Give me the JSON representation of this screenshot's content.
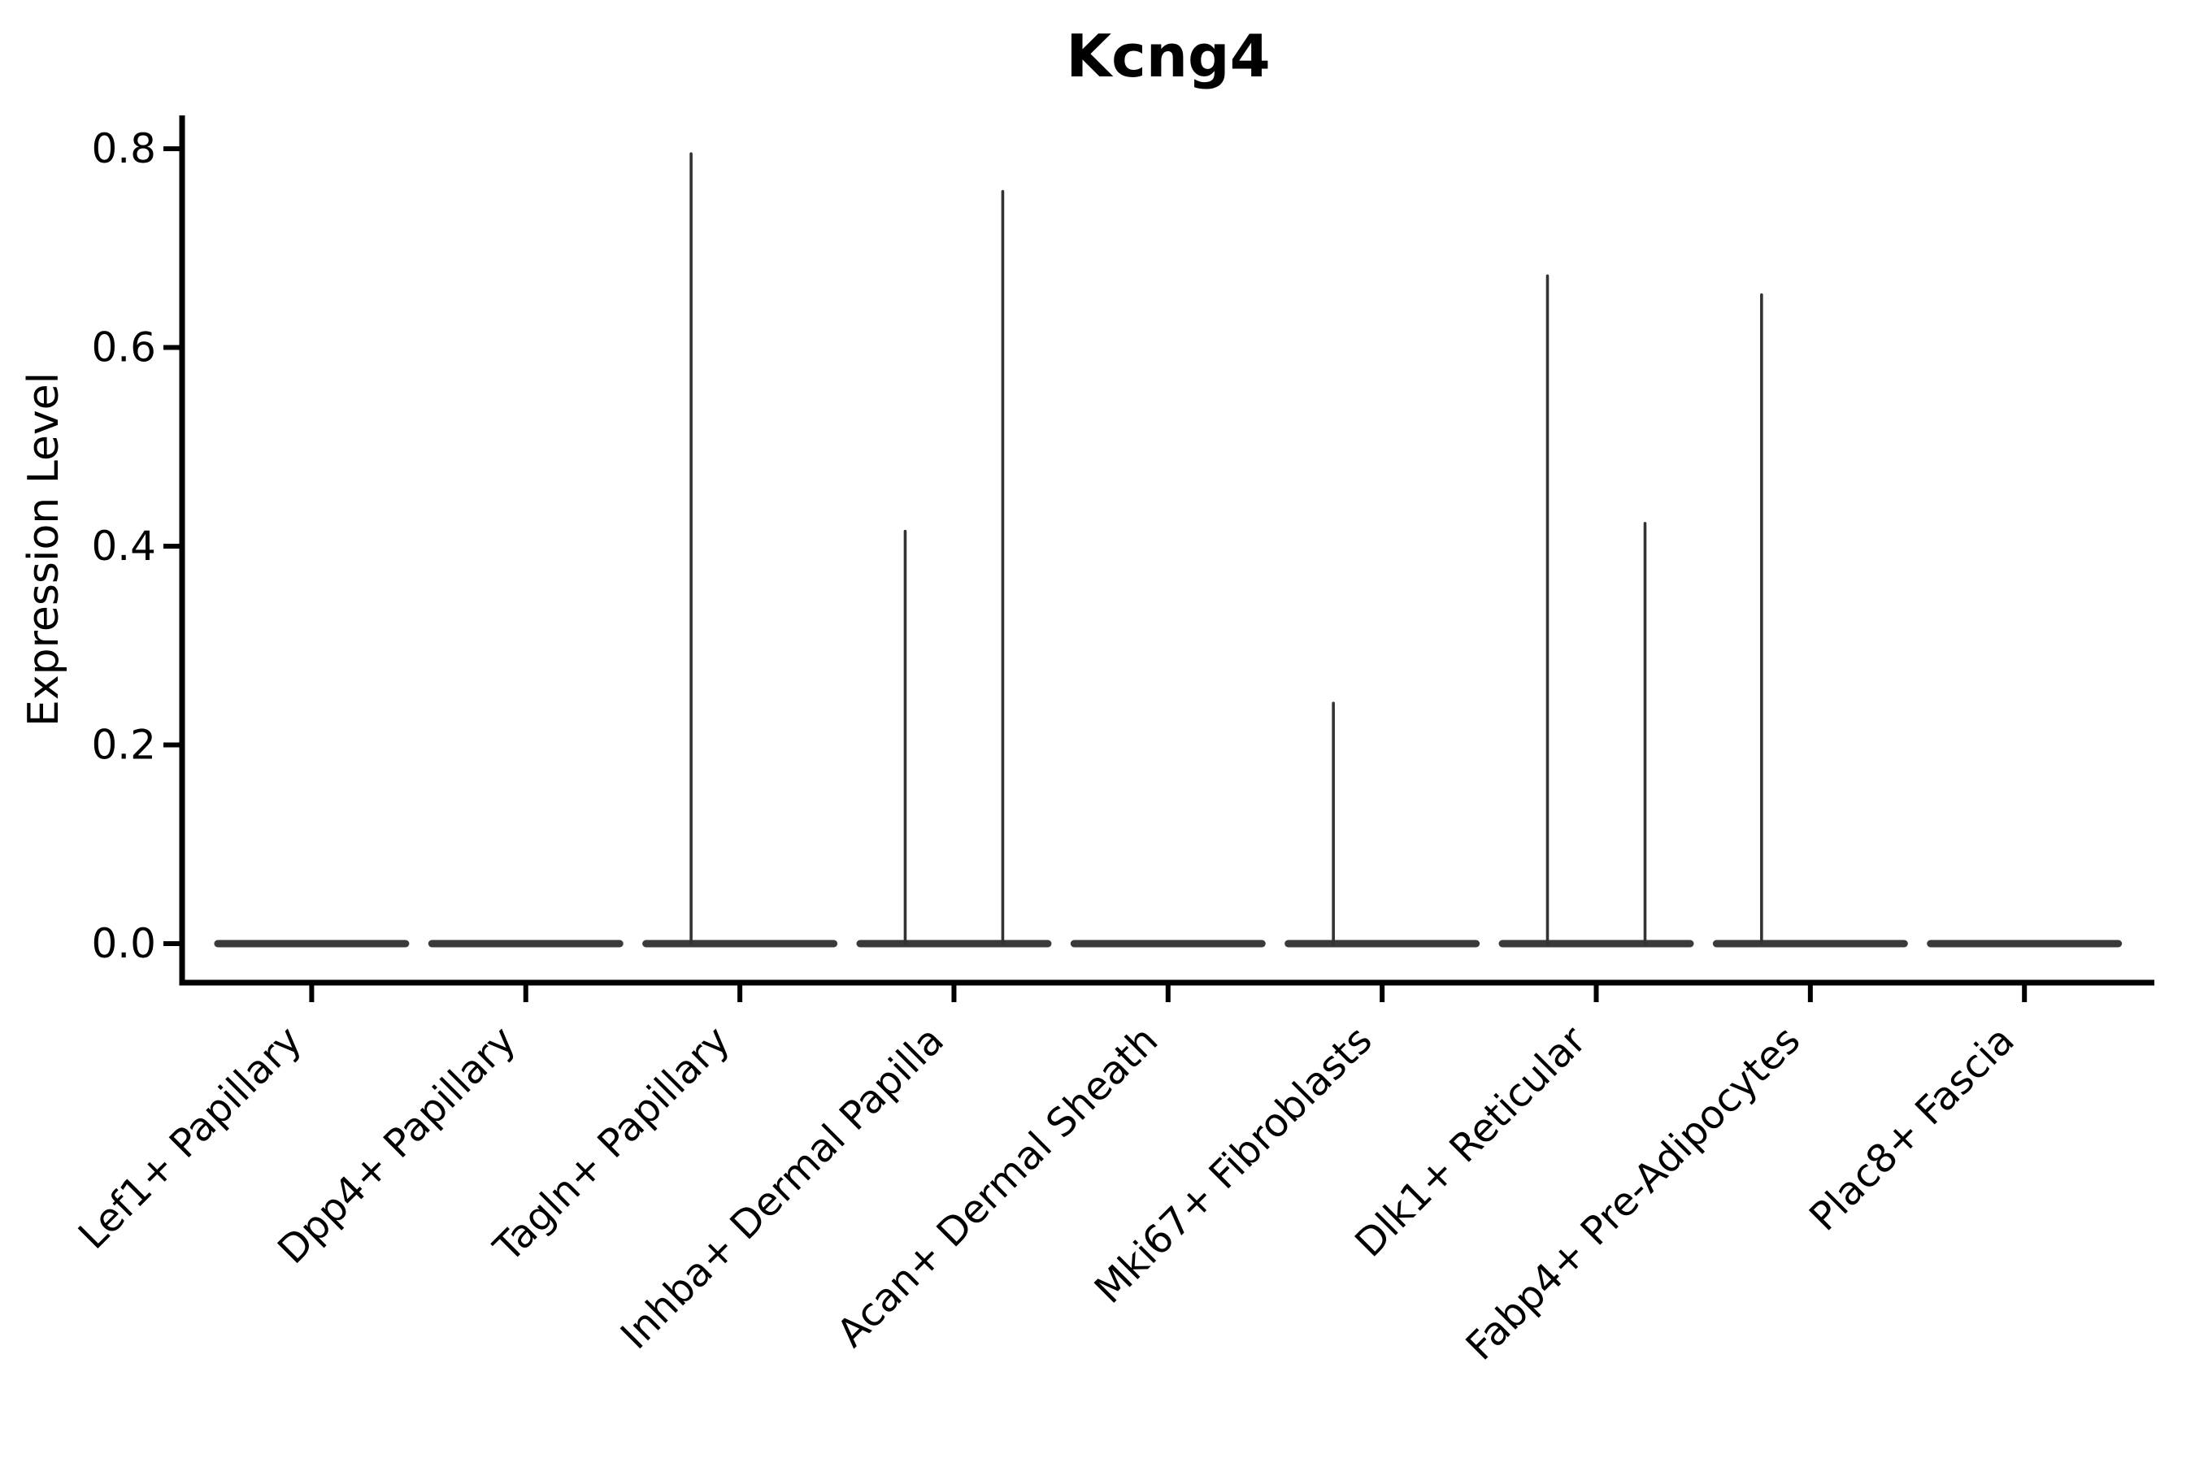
{
  "figure": {
    "title": "Kcng4"
  },
  "chart_data": {
    "type": "violin",
    "title": "Kcng4",
    "xlabel": "",
    "ylabel": "Expression Level",
    "categories": [
      "Lef1+ Papillary",
      "Dpp4+ Papillary",
      "Tagln+ Papillary",
      "Inhba+ Dermal Papilla",
      "Acan+ Dermal Sheath",
      "Mki67+ Fibroblasts",
      "Dlk1+ Reticular",
      "Fabp4+ Pre-Adipocytes",
      "Plac8+ Fascia"
    ],
    "ytick_labels": [
      "0.0",
      "0.2",
      "0.4",
      "0.6",
      "0.8"
    ],
    "ytick_values": [
      0,
      0.2,
      0.4,
      0.6,
      0.8
    ],
    "ylim": [
      -0.039,
      0.834
    ],
    "violins_per_category": 2,
    "baseline_value": 0,
    "sub_violin_max": [
      [
        0,
        0
      ],
      [
        0,
        0
      ],
      [
        0.795,
        0
      ],
      [
        0.415,
        0.757
      ],
      [
        0,
        0
      ],
      [
        0.242,
        0
      ],
      [
        0.672,
        0.423
      ],
      [
        0.653,
        0
      ],
      [
        0,
        0
      ]
    ],
    "x_tick_rotation_deg": 45,
    "grid": false,
    "legend": "none",
    "colors": {
      "violin_fill": "#3a3a3a",
      "spike_stroke": "#333333",
      "axis": "#000000",
      "text": "#000000",
      "background": "#ffffff"
    }
  }
}
